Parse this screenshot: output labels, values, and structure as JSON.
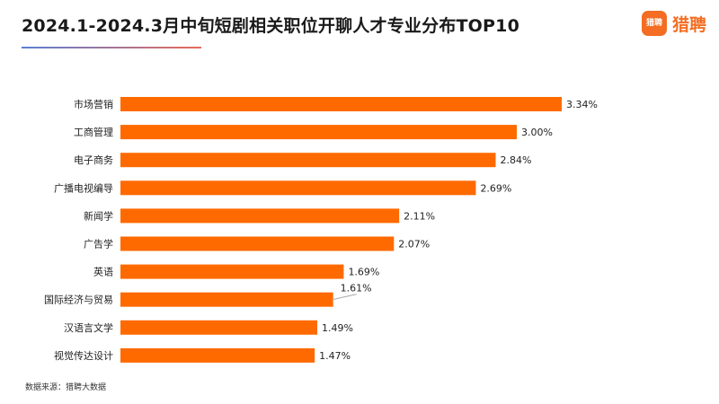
{
  "header": {
    "title": "2024.1-2024.3月中旬短剧相关职位开聊人才专业分布TOP10",
    "logo_mark": "猎聘",
    "logo_text": "猎聘"
  },
  "footer": {
    "source": "数据来源：猎聘大数据"
  },
  "colors": {
    "bar": "#ff6a00",
    "title_underline_start": "#5b7fd6",
    "title_underline_end": "#e86a5a",
    "logo": "#f46d22"
  },
  "chart_data": {
    "type": "bar",
    "orientation": "horizontal",
    "categories": [
      "市场营销",
      "工商管理",
      "电子商务",
      "广播电视编导",
      "新闻学",
      "广告学",
      "英语",
      "国际经济与贸易",
      "汉语言文学",
      "视觉传达设计"
    ],
    "values": [
      3.34,
      3.0,
      2.84,
      2.69,
      2.11,
      2.07,
      1.69,
      1.61,
      1.49,
      1.47
    ],
    "value_labels": [
      "3.34%",
      "3.00%",
      "2.84%",
      "2.69%",
      "2.11%",
      "2.07%",
      "1.69%",
      "1.61%",
      "1.49%",
      "1.47%"
    ],
    "unit": "%",
    "xlim": [
      0,
      3.34
    ],
    "grid": false,
    "legend": "none"
  }
}
